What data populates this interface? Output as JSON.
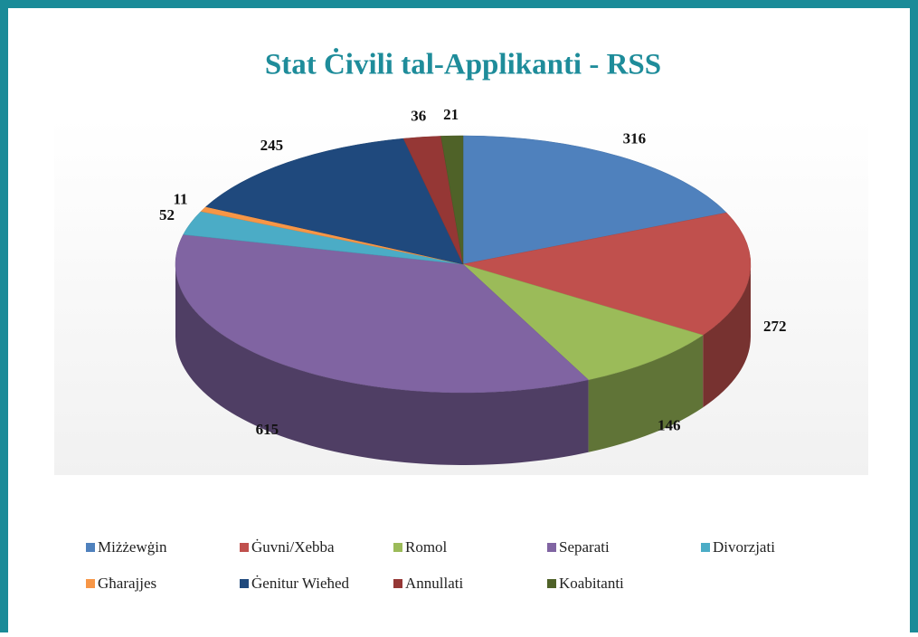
{
  "chart_data": {
    "type": "pie3d",
    "title": "Stat Ċivili tal-Applikanti - RSS",
    "categories": [
      "Miżżewġin",
      "Ġuvni/Xebba",
      "Romol",
      "Separati",
      "Divorzjati",
      "Għarajjes",
      "Ġenitur Wieħed",
      "Annullati",
      "Koabitanti"
    ],
    "values": [
      316,
      272,
      146,
      615,
      52,
      11,
      245,
      36,
      21
    ],
    "colors": [
      "#4f81bd",
      "#c0504d",
      "#9bbb59",
      "#8064a2",
      "#4bacc6",
      "#f79646",
      "#1f497d",
      "#953735",
      "#4f6228"
    ],
    "legend": "bottom"
  }
}
